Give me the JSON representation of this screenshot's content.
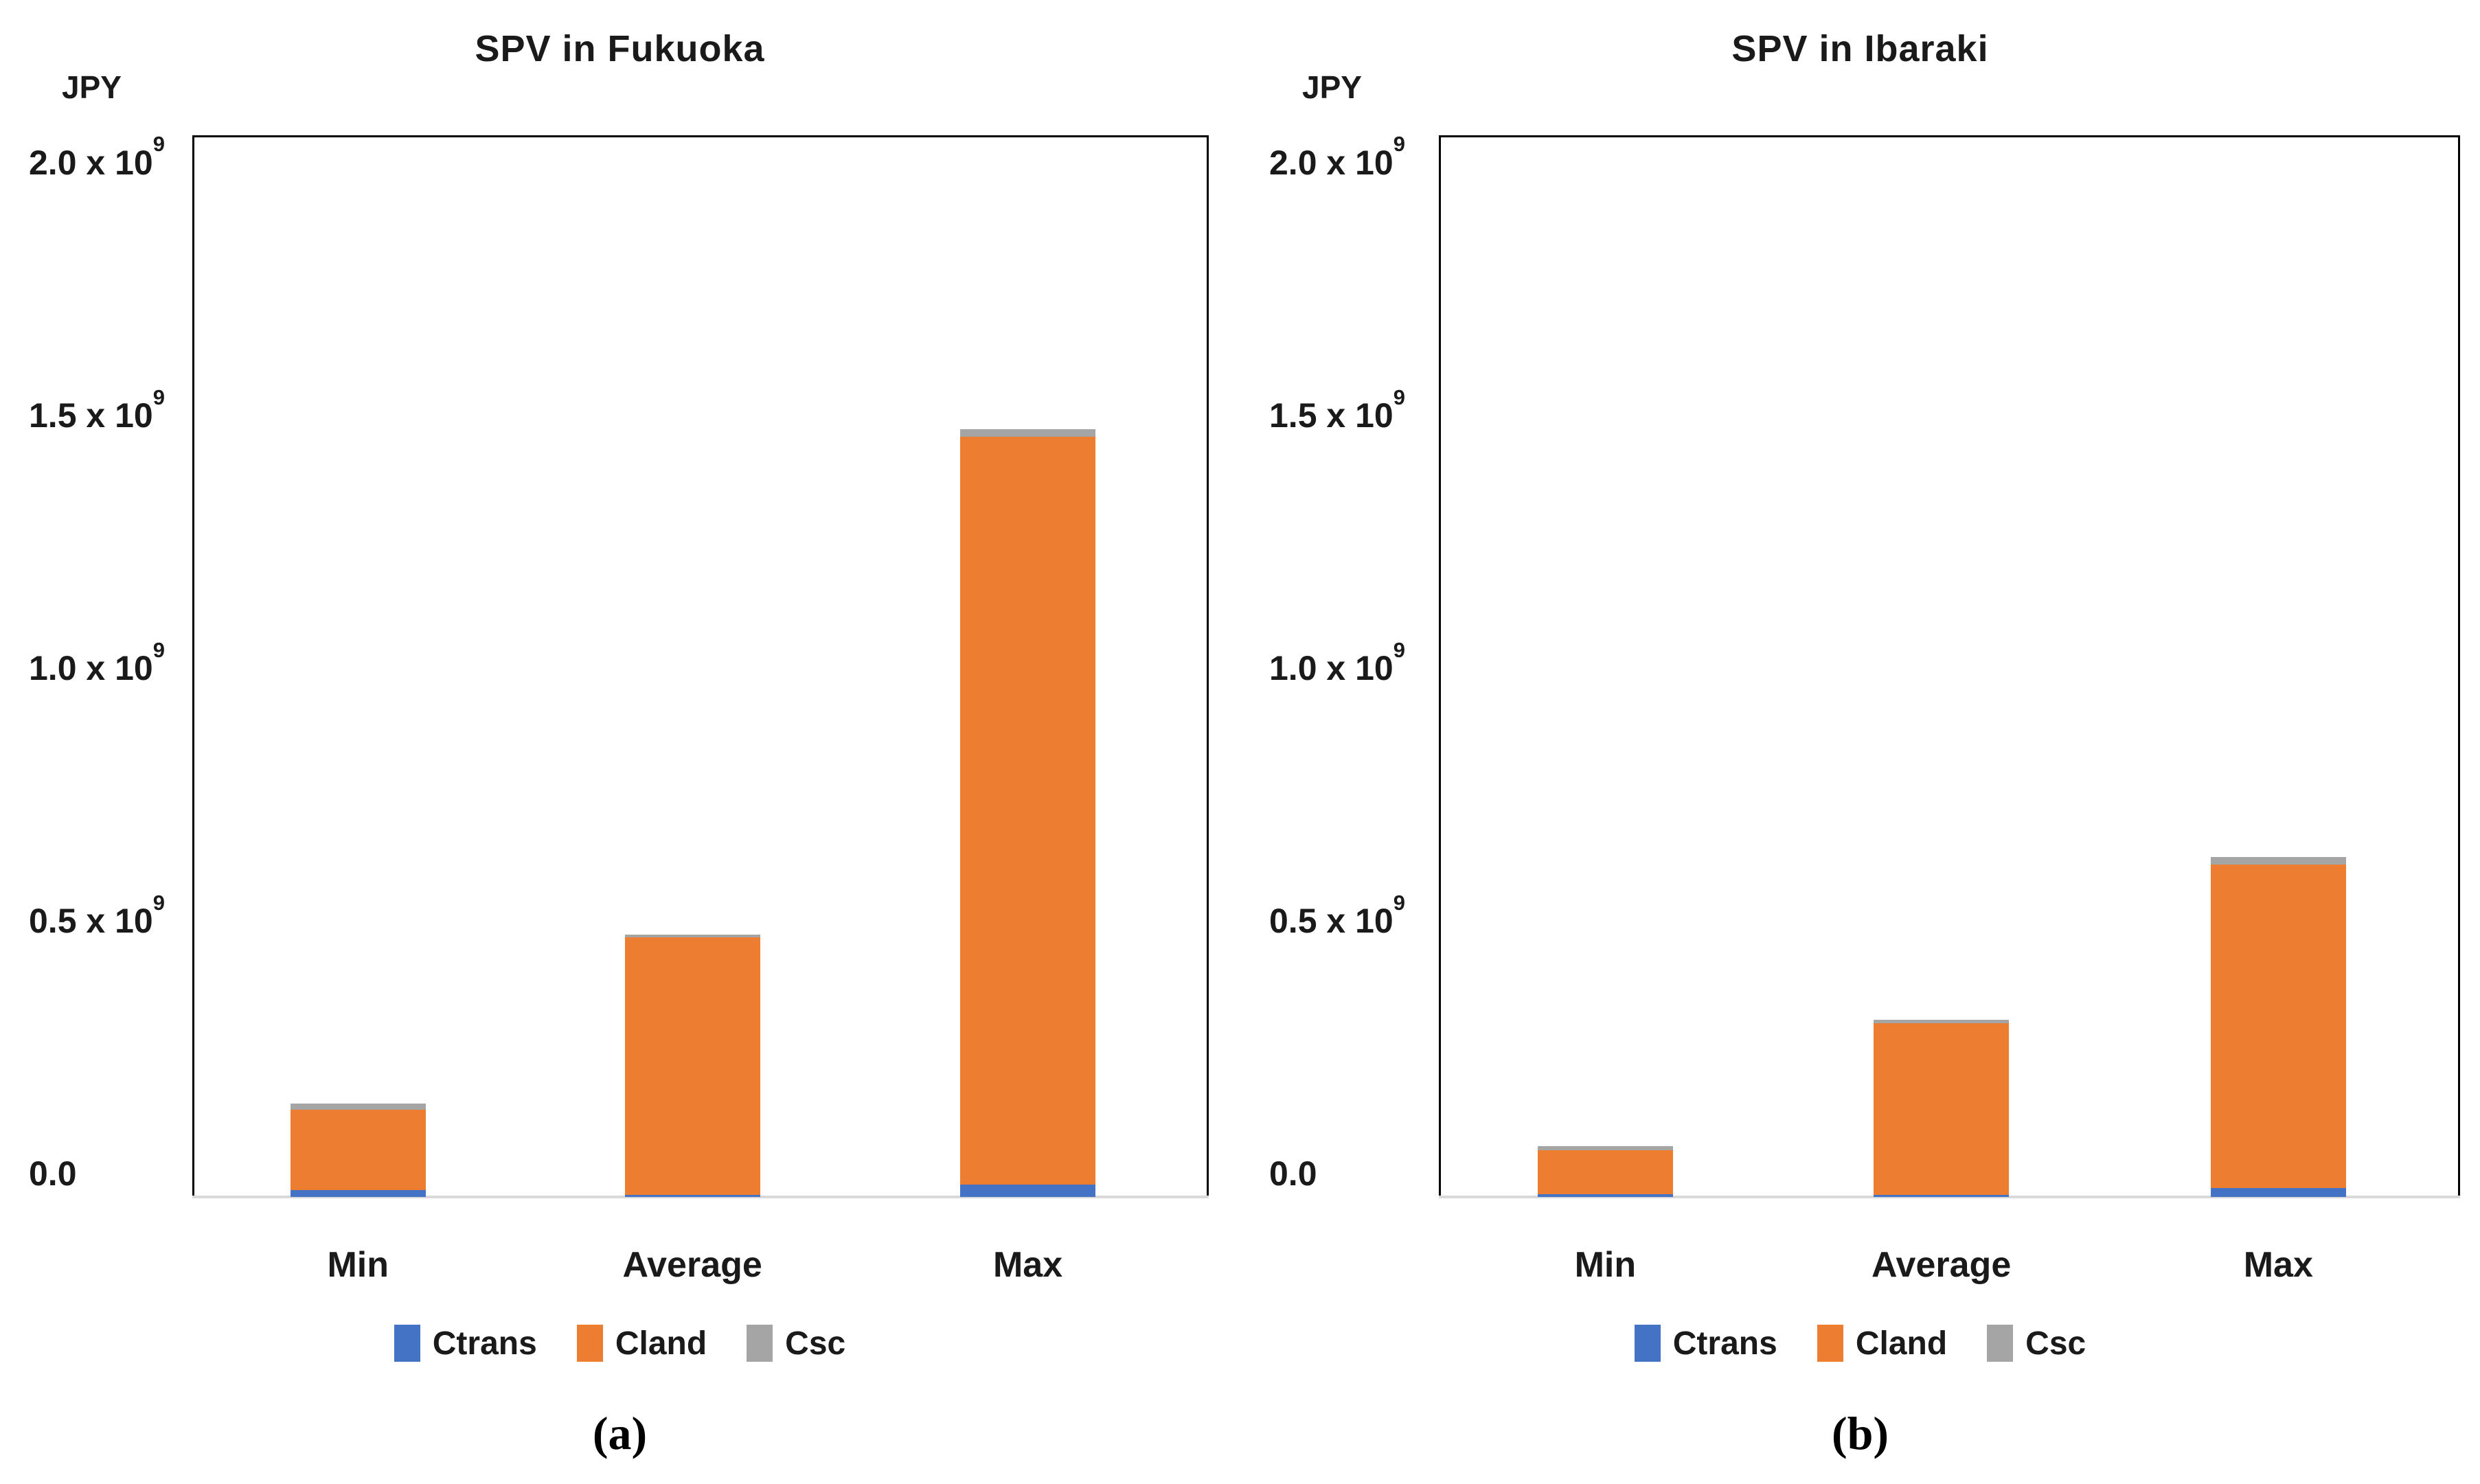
{
  "colors": {
    "ctrans": "#4472C4",
    "cland": "#ED7D31",
    "csc": "#A5A5A5",
    "axis_line": "#D9D9D9",
    "plot_border": "#000000",
    "text": "#1A1A1A"
  },
  "chart_data": [
    {
      "type": "bar",
      "stacked": true,
      "title": "SPV in Fukuoka",
      "unit_label": "JPY",
      "caption": "(a)",
      "grid": false,
      "legend_position": "bottom",
      "categories": [
        "Min",
        "Average",
        "Max"
      ],
      "series": [
        {
          "name": "Ctrans",
          "color": "#4472C4",
          "values": [
            13000000,
            4000000,
            24000000
          ]
        },
        {
          "name": "Cland",
          "color": "#ED7D31",
          "values": [
            160000000,
            510000000,
            1480000000
          ]
        },
        {
          "name": "Csc",
          "color": "#A5A5A5",
          "values": [
            12000000,
            5000000,
            15000000
          ]
        }
      ],
      "totals": [
        185000000,
        519000000,
        1519000000
      ],
      "ylim": [
        0,
        2100000000
      ],
      "yticks": [
        {
          "value": 0,
          "label": "0.0",
          "sup": ""
        },
        {
          "value": 500000000,
          "label": "0.5 x 10",
          "sup": "9"
        },
        {
          "value": 1000000000,
          "label": "1.0 x 10",
          "sup": "9"
        },
        {
          "value": 1500000000,
          "label": "1.5 x 10",
          "sup": "9"
        },
        {
          "value": 2000000000,
          "label": "2.0 x 10",
          "sup": "9"
        }
      ]
    },
    {
      "type": "bar",
      "stacked": true,
      "title": "SPV in Ibaraki",
      "unit_label": "JPY",
      "caption": "(b)",
      "grid": false,
      "legend_position": "bottom",
      "categories": [
        "Min",
        "Average",
        "Max"
      ],
      "series": [
        {
          "name": "Ctrans",
          "color": "#4472C4",
          "values": [
            5000000,
            4000000,
            18000000
          ]
        },
        {
          "name": "Cland",
          "color": "#ED7D31",
          "values": [
            88000000,
            340000000,
            640000000
          ]
        },
        {
          "name": "Csc",
          "color": "#A5A5A5",
          "values": [
            8000000,
            6000000,
            15000000
          ]
        }
      ],
      "totals": [
        101000000,
        350000000,
        673000000
      ],
      "ylim": [
        0,
        2100000000
      ],
      "yticks": [
        {
          "value": 0,
          "label": "0.0",
          "sup": ""
        },
        {
          "value": 500000000,
          "label": "0.5 x 10",
          "sup": "9"
        },
        {
          "value": 1000000000,
          "label": "1.0 x 10",
          "sup": "9"
        },
        {
          "value": 1500000000,
          "label": "1.5 x 10",
          "sup": "9"
        },
        {
          "value": 2000000000,
          "label": "2.0 x 10",
          "sup": "9"
        }
      ]
    }
  ]
}
